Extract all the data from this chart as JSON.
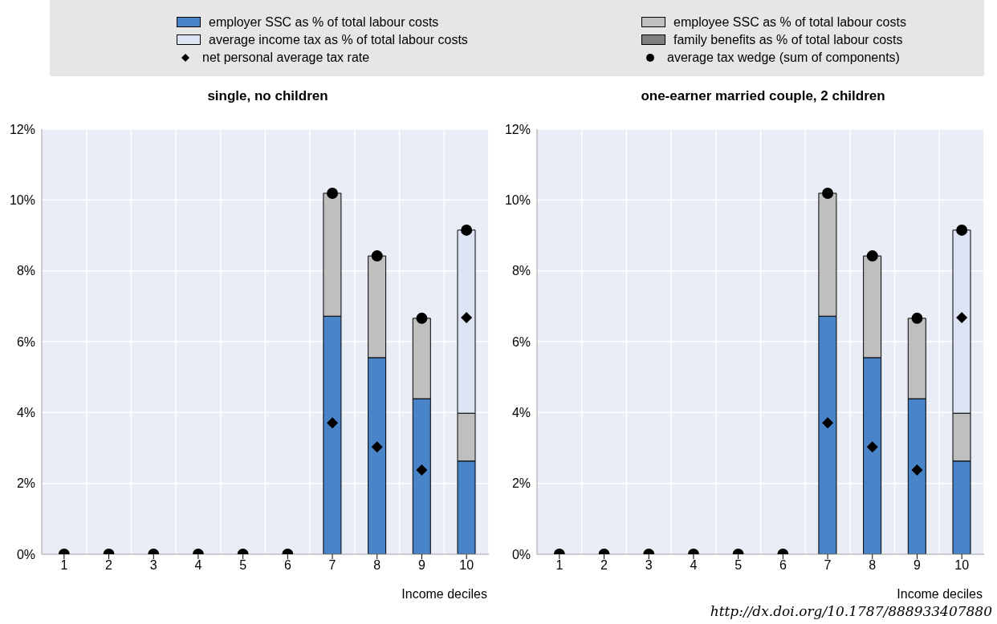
{
  "chart_data": [
    {
      "type": "bar",
      "title": "single, no children",
      "xlabel": "Income deciles",
      "categories": [
        "1",
        "2",
        "3",
        "4",
        "5",
        "6",
        "7",
        "8",
        "9",
        "10"
      ],
      "stacked": true,
      "grid": true,
      "legend": "top",
      "ylim": [
        0,
        12
      ],
      "yticks": [
        {
          "value": 0,
          "label": "0%"
        },
        {
          "value": 2,
          "label": "2%"
        },
        {
          "value": 4,
          "label": "4%"
        },
        {
          "value": 6,
          "label": "6%"
        },
        {
          "value": 8,
          "label": "8%"
        },
        {
          "value": 10,
          "label": "10%"
        },
        {
          "value": 12,
          "label": "12%"
        }
      ],
      "series": [
        {
          "name": "employer SSC as % of total labour costs",
          "color": "#4a84c8",
          "values": [
            null,
            null,
            null,
            null,
            null,
            null,
            6.72,
            5.55,
            4.39,
            2.63
          ]
        },
        {
          "name": "employee SSC as % of total labour costs",
          "color": "#bfbfbf",
          "values": [
            null,
            null,
            null,
            null,
            null,
            null,
            3.47,
            2.87,
            2.27,
            1.35
          ]
        },
        {
          "name": "average income tax as % of total labour costs",
          "color": "#dce4f4",
          "values": [
            null,
            null,
            null,
            null,
            null,
            null,
            null,
            null,
            null,
            5.17
          ]
        },
        {
          "name": "family benefits as % of total labour costs",
          "color": "#7f7f7f",
          "values": [
            null,
            null,
            null,
            null,
            null,
            null,
            null,
            null,
            null,
            null
          ]
        },
        {
          "name": "net personal average tax rate",
          "type": "scatter",
          "marker": "diamond",
          "color": "#000000",
          "values": [
            null,
            null,
            null,
            null,
            null,
            null,
            3.71,
            3.03,
            2.38,
            6.68
          ]
        },
        {
          "name": "average tax wedge (sum of components)",
          "type": "scatter",
          "marker": "circle",
          "color": "#000000",
          "values": [
            0,
            0,
            0,
            0,
            0,
            0,
            10.19,
            8.42,
            6.66,
            9.15
          ]
        }
      ]
    },
    {
      "type": "bar",
      "title": "one-earner married couple, 2 children",
      "xlabel": "Income deciles",
      "categories": [
        "1",
        "2",
        "3",
        "4",
        "5",
        "6",
        "7",
        "8",
        "9",
        "10"
      ],
      "stacked": true,
      "grid": true,
      "ylim": [
        0,
        12
      ],
      "yticks": [
        {
          "value": 0,
          "label": "0%"
        },
        {
          "value": 2,
          "label": "2%"
        },
        {
          "value": 4,
          "label": "4%"
        },
        {
          "value": 6,
          "label": "6%"
        },
        {
          "value": 8,
          "label": "8%"
        },
        {
          "value": 10,
          "label": "10%"
        },
        {
          "value": 12,
          "label": "12%"
        }
      ],
      "annotations": [
        "http://dx.doi.org/10.1787/888933407880"
      ],
      "series": [
        {
          "color": "#4a84c8",
          "values": [
            null,
            null,
            null,
            null,
            null,
            null,
            6.72,
            5.55,
            4.39,
            2.63
          ]
        },
        {
          "color": "#bfbfbf",
          "values": [
            null,
            null,
            null,
            null,
            null,
            null,
            3.47,
            2.87,
            2.27,
            1.35
          ]
        },
        {
          "color": "#dce4f4",
          "values": [
            null,
            null,
            null,
            null,
            null,
            null,
            null,
            null,
            null,
            5.17
          ]
        },
        {
          "color": "#7f7f7f",
          "values": [
            null,
            null,
            null,
            null,
            null,
            null,
            null,
            null,
            null,
            null
          ]
        },
        {
          "type": "scatter",
          "marker": "diamond",
          "color": "#000000",
          "values": [
            null,
            null,
            null,
            null,
            null,
            null,
            3.71,
            3.03,
            2.38,
            6.68
          ]
        },
        {
          "type": "scatter",
          "marker": "circle",
          "color": "#000000",
          "values": [
            0,
            0,
            0,
            0,
            0,
            0,
            10.19,
            8.42,
            6.66,
            9.15
          ]
        }
      ]
    }
  ]
}
